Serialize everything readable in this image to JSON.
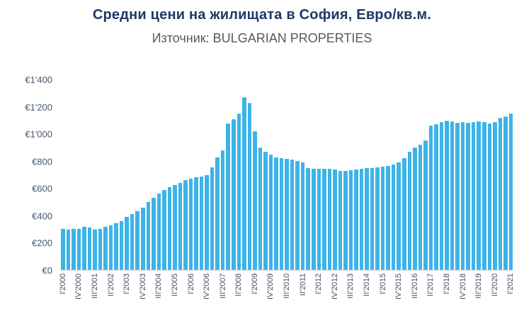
{
  "colors": {
    "title": "#1F3864",
    "subtitle": "#595959",
    "axis_label": "#44546A",
    "bar": "#3CB4E7"
  },
  "chart_data": {
    "type": "bar",
    "title": "Средни цени на жилищата в София, Евро/кв.м.",
    "subtitle": "Източник: BULGARIAN PROPERTIES",
    "ylabel": "",
    "xlabel": "",
    "ylim": [
      0,
      1400
    ],
    "grid": false,
    "legend": "none",
    "bar_color": "#3CB4E7",
    "y_tick_labels": [
      "€0",
      "€200",
      "€400",
      "€600",
      "€800",
      "€1'000",
      "€1'200",
      "€1'400"
    ],
    "y_tick_values": [
      0,
      200,
      400,
      600,
      800,
      1000,
      1200,
      1400
    ],
    "x_label_every": 3,
    "x_tick_labels": [
      "I'2000",
      "IV'2000",
      "III'2001",
      "II'2002",
      "I'2003",
      "IV'2003",
      "III'2004",
      "II'2005",
      "I'2006",
      "IV'2006",
      "III'2007",
      "II'2008",
      "I'2009",
      "IV'2009",
      "III'2010",
      "II'2011",
      "I'2012",
      "IV'2012",
      "III'2013",
      "II'2014",
      "I'2015",
      "IV'2015",
      "III'2016",
      "II'2017",
      "I'2018",
      "IV'2018",
      "III'2019",
      "II'2020",
      "I'2021"
    ],
    "categories": [
      "I'2000",
      "II'2000",
      "III'2000",
      "IV'2000",
      "I'2001",
      "II'2001",
      "III'2001",
      "IV'2001",
      "I'2002",
      "II'2002",
      "III'2002",
      "IV'2002",
      "I'2003",
      "II'2003",
      "III'2003",
      "IV'2003",
      "I'2004",
      "II'2004",
      "III'2004",
      "IV'2004",
      "I'2005",
      "II'2005",
      "III'2005",
      "IV'2005",
      "I'2006",
      "II'2006",
      "III'2006",
      "IV'2006",
      "I'2007",
      "II'2007",
      "III'2007",
      "IV'2007",
      "I'2008",
      "II'2008",
      "III'2008",
      "IV'2008",
      "I'2009",
      "II'2009",
      "III'2009",
      "IV'2009",
      "I'2010",
      "II'2010",
      "III'2010",
      "IV'2010",
      "I'2011",
      "II'2011",
      "III'2011",
      "IV'2011",
      "I'2012",
      "II'2012",
      "III'2012",
      "IV'2012",
      "I'2013",
      "II'2013",
      "III'2013",
      "IV'2013",
      "I'2014",
      "II'2014",
      "III'2014",
      "IV'2014",
      "I'2015",
      "II'2015",
      "III'2015",
      "IV'2015",
      "I'2016",
      "II'2016",
      "III'2016",
      "IV'2016",
      "I'2017",
      "II'2017",
      "III'2017",
      "IV'2017",
      "I'2018",
      "II'2018",
      "III'2018",
      "IV'2018",
      "I'2019",
      "II'2019",
      "III'2019",
      "IV'2019",
      "I'2020",
      "II'2020",
      "III'2020",
      "IV'2020",
      "I'2021"
    ],
    "values": [
      300,
      295,
      300,
      300,
      320,
      310,
      295,
      300,
      320,
      330,
      345,
      360,
      390,
      410,
      430,
      460,
      500,
      530,
      560,
      590,
      610,
      625,
      640,
      660,
      670,
      680,
      685,
      700,
      755,
      830,
      880,
      1080,
      1110,
      1150,
      1270,
      1230,
      1020,
      900,
      870,
      850,
      830,
      820,
      815,
      810,
      800,
      790,
      750,
      745,
      745,
      745,
      745,
      740,
      730,
      730,
      735,
      740,
      745,
      750,
      750,
      755,
      760,
      765,
      775,
      790,
      820,
      870,
      900,
      920,
      950,
      1060,
      1070,
      1090,
      1100,
      1095,
      1085,
      1090,
      1085,
      1090,
      1095,
      1090,
      1080,
      1090,
      1120,
      1130,
      1150
    ]
  }
}
